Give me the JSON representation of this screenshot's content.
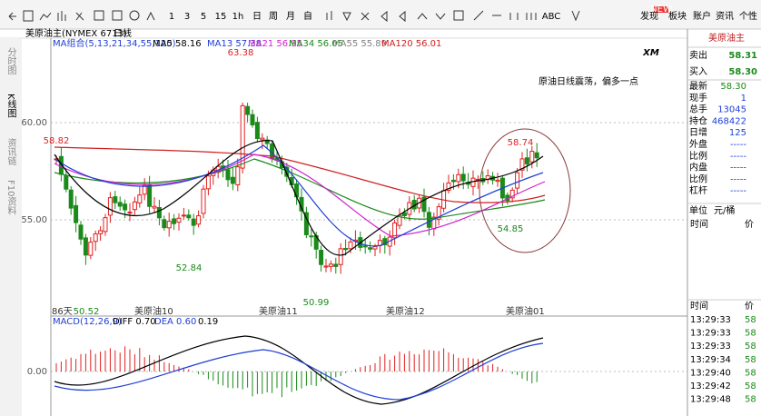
{
  "toolbar": {
    "intervals": [
      "1",
      "3",
      "5",
      "15",
      "1h",
      "日",
      "周",
      "月",
      "自"
    ],
    "abc": "ABC",
    "badge": "NEW",
    "menu": [
      "发现",
      "板块",
      "账户",
      "资讯",
      "个性"
    ]
  },
  "side_tabs": [
    "分时图",
    "K线图",
    "资讯链",
    "F10资料"
  ],
  "chart": {
    "symbol": "美原油主(NYMEX 6713)",
    "period": "日线",
    "ma_group": "MA组合(5,13,21,34,55,120)",
    "ma": [
      {
        "label": "MA5 58.16",
        "color": "#000000"
      },
      {
        "label": "MA13 57.38",
        "color": "#1f3fd6"
      },
      {
        "label": "MA21 56.95",
        "color": "#d020d0"
      },
      {
        "label": "MA34 56.05",
        "color": "#1a8a1a"
      },
      {
        "label": "MA55 55.89",
        "color": "#808080"
      },
      {
        "label": "MA120 56.01",
        "color": "#d02020"
      }
    ],
    "price_axis": [
      "60.00",
      "55.00"
    ],
    "price_labels": [
      {
        "text": "63.38",
        "color": "#e02020"
      },
      {
        "text": "58.82",
        "color": "#e02020"
      },
      {
        "text": "52.84",
        "color": "#1a8a1a"
      },
      {
        "text": "50.52",
        "color": "#1a8a1a"
      },
      {
        "text": "50.99",
        "color": "#1a8a1a"
      },
      {
        "text": "58.74",
        "color": "#e02020"
      },
      {
        "text": "54.85",
        "color": "#1a8a1a"
      }
    ],
    "annotation": "原油日线震荡，偏多一点",
    "logo": "XM",
    "date_labels": [
      "86天",
      "美原油10",
      "美原油11",
      "美原油12",
      "美原油01"
    ]
  },
  "macd": {
    "title": "MACD(12,26,9)",
    "diff": "DIFF 0.70",
    "dea": "DEA 0.60",
    "value": "0.19",
    "zero": "0.00"
  },
  "quote": {
    "name": "美原油主",
    "sell": [
      "卖出",
      "58.31"
    ],
    "buy": [
      "买入",
      "58.30"
    ],
    "stats": [
      [
        "最新",
        "58.30"
      ],
      [
        "现手",
        "1"
      ],
      [
        "总手",
        "13045"
      ],
      [
        "持仓",
        "468422"
      ],
      [
        "日增",
        "125"
      ],
      [
        "外盘",
        "-----"
      ],
      [
        "比例",
        "-----"
      ],
      [
        "内盘",
        "-----"
      ],
      [
        "比例",
        "-----"
      ],
      [
        "杠杆",
        "-----"
      ]
    ],
    "unit": [
      "单位",
      "元/桶"
    ],
    "time_header": [
      "时间",
      "价"
    ]
  },
  "ticks": {
    "header": [
      "时间",
      "价"
    ],
    "rows": [
      [
        "13:29:33",
        "58"
      ],
      [
        "13:29:33",
        "58"
      ],
      [
        "13:29:33",
        "58"
      ],
      [
        "13:29:34",
        "58"
      ],
      [
        "13:29:40",
        "58"
      ],
      [
        "13:29:42",
        "58"
      ],
      [
        "13:29:48",
        "58"
      ]
    ]
  }
}
